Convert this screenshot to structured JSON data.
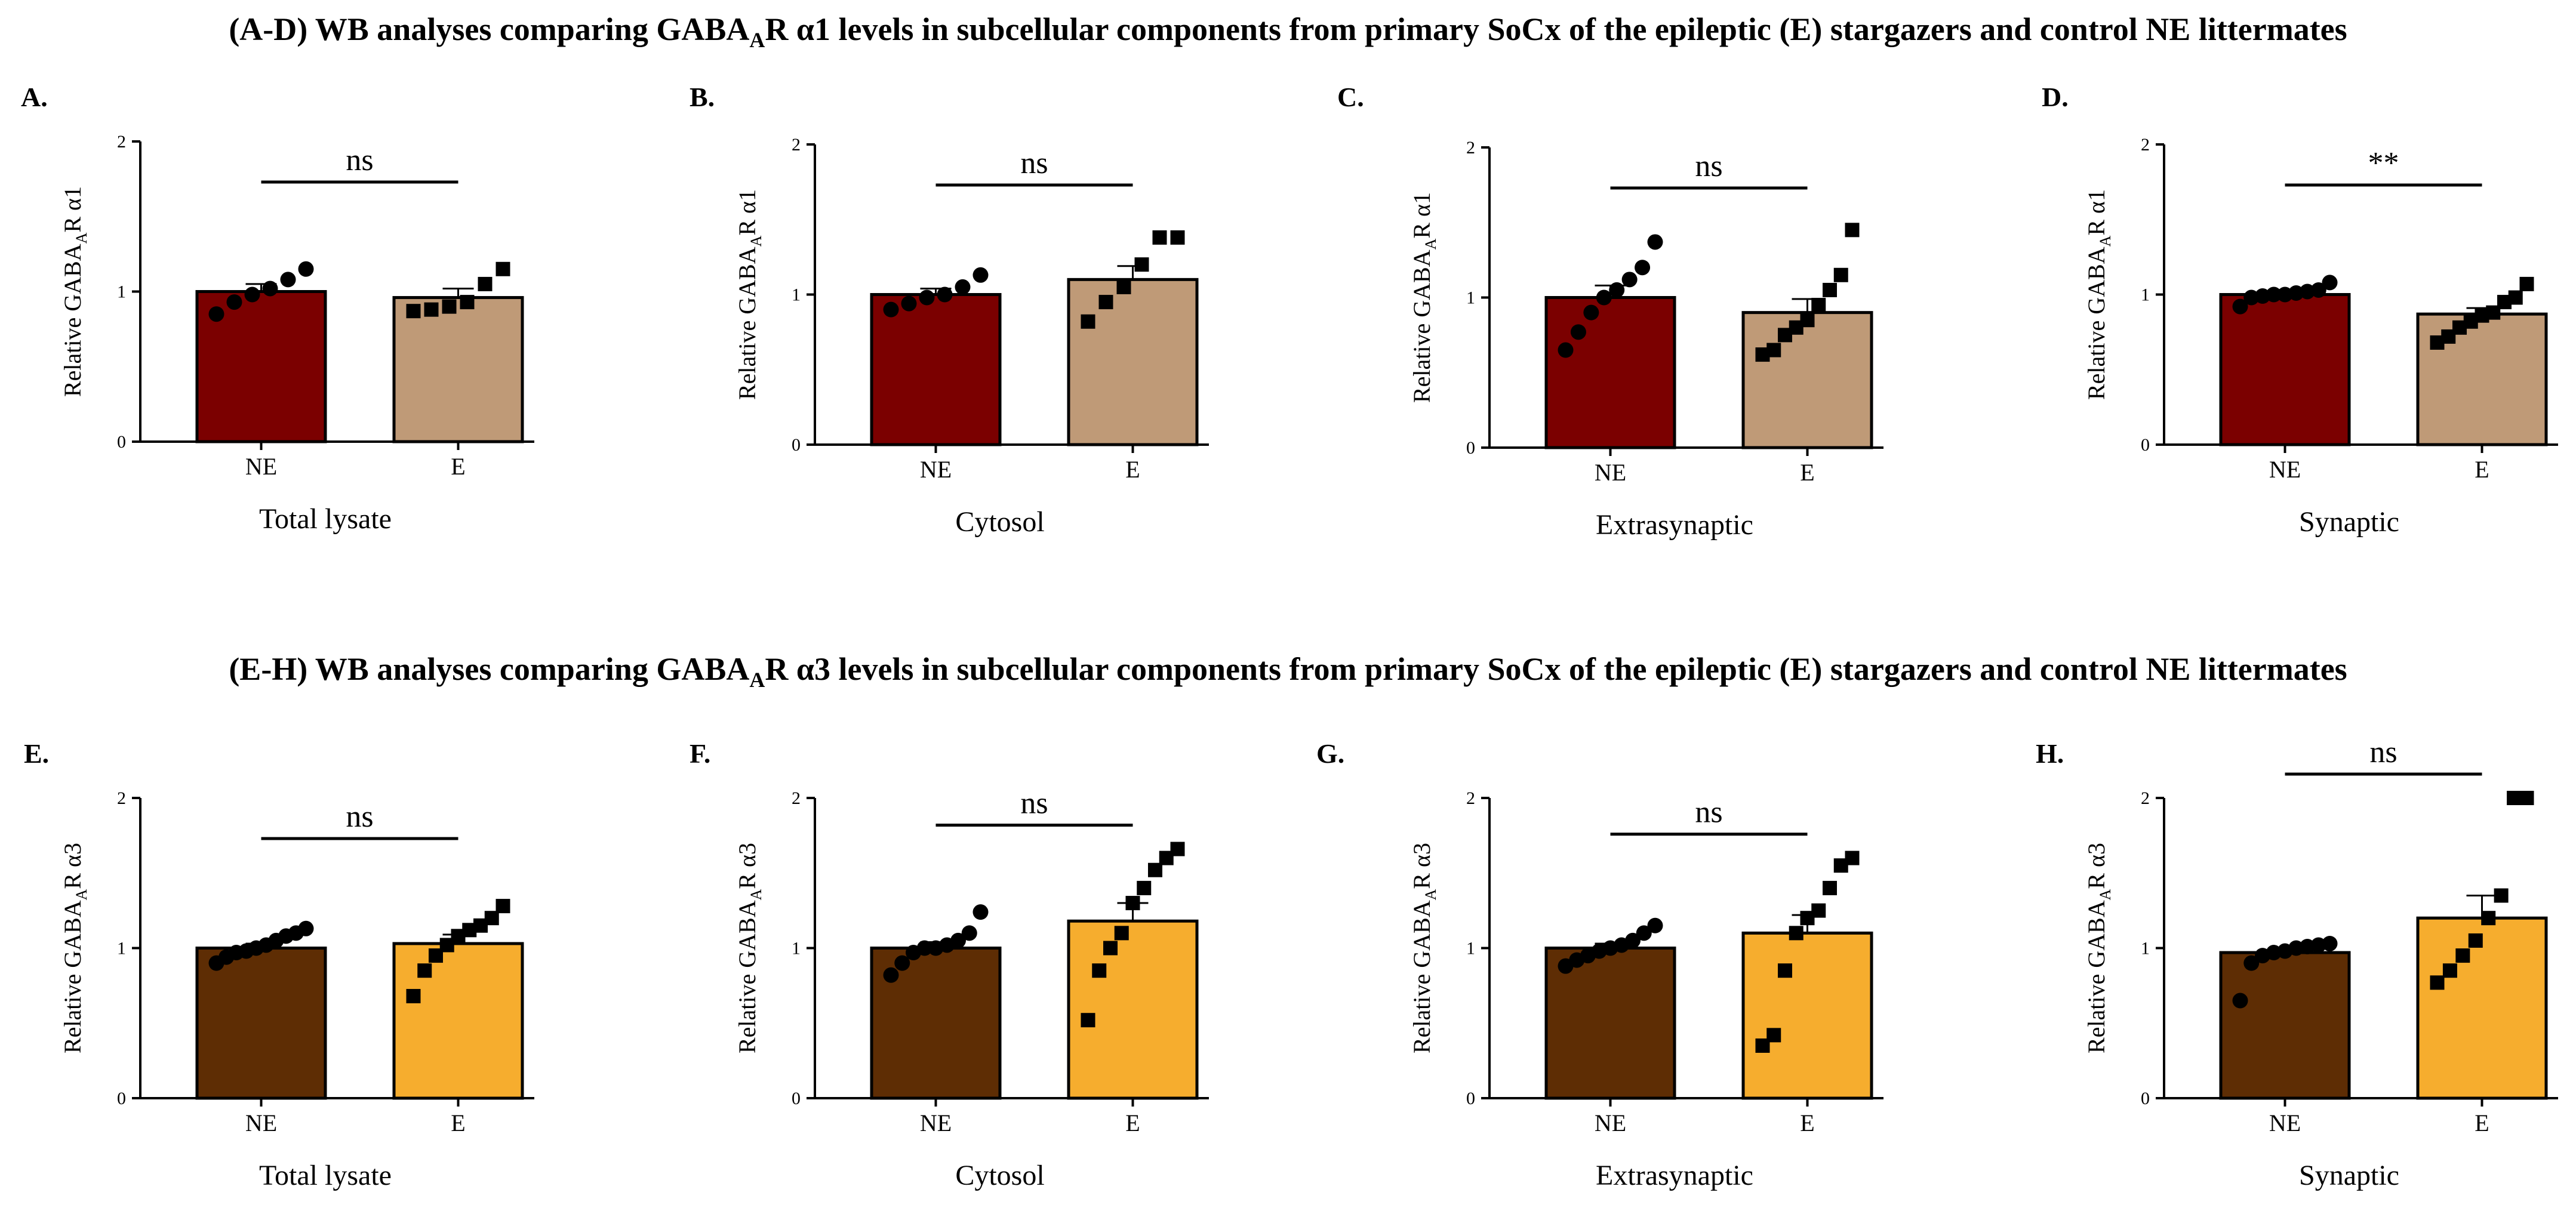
{
  "row_titles": [
    {
      "prefix": "(A-D) WB analyses comparing GABA",
      "sub": "A",
      "suffix": "R α1  levels in subcellular components from primary SoCx of the epileptic (E) stargazers and control NE littermates"
    },
    {
      "prefix": "(E-H) WB analyses comparing GABA",
      "sub": "A",
      "suffix": "R α3  levels in subcellular components from primary SoCx of the epileptic (E) stargazers and control NE littermates"
    }
  ],
  "colors": {
    "alpha1_ne": "#7b0000",
    "alpha1_e": "#bf9a77",
    "alpha3_ne": "#5e2d04",
    "alpha3_e": "#f6ad2e"
  },
  "chart_data": [
    {
      "panel": "A.",
      "type": "bar",
      "ylabel_prefix": "Relative GABA",
      "ylabel_sub": "A",
      "ylabel_suffix": "R α1",
      "ylim": [
        0,
        2
      ],
      "yticks": [
        "0",
        "1",
        "2"
      ],
      "xlabel": "Total lysate",
      "categories": [
        "NE",
        "E"
      ],
      "means": [
        1.0,
        0.96
      ],
      "sem": [
        0.05,
        0.06
      ],
      "significance": "ns",
      "points": [
        [
          0.85,
          0.93,
          0.98,
          1.02,
          1.08,
          1.15
        ],
        [
          0.87,
          0.88,
          0.9,
          0.93,
          1.05,
          1.15
        ]
      ],
      "markers": [
        "circle",
        "square"
      ],
      "fills": [
        "alpha1_ne",
        "alpha1_e"
      ]
    },
    {
      "panel": "B.",
      "type": "bar",
      "ylabel_prefix": "Relative GABA",
      "ylabel_sub": "A",
      "ylabel_suffix": "R α1",
      "ylim": [
        0,
        2
      ],
      "yticks": [
        "0",
        "1",
        "2"
      ],
      "xlabel": "Cytosol",
      "categories": [
        "NE",
        "E"
      ],
      "means": [
        1.0,
        1.1
      ],
      "sem": [
        0.04,
        0.09
      ],
      "significance": "ns",
      "points": [
        [
          0.9,
          0.94,
          0.98,
          1.0,
          1.05,
          1.13
        ],
        [
          0.82,
          0.95,
          1.05,
          1.2,
          1.38,
          1.38
        ]
      ],
      "markers": [
        "circle",
        "square"
      ],
      "fills": [
        "alpha1_ne",
        "alpha1_e"
      ]
    },
    {
      "panel": "C.",
      "type": "bar",
      "ylabel_prefix": "Relative GABA",
      "ylabel_sub": "A",
      "ylabel_suffix": "R α1",
      "ylim": [
        0,
        2
      ],
      "yticks": [
        "0",
        "1",
        "2"
      ],
      "xlabel": "Extrasynaptic",
      "categories": [
        "NE",
        "E"
      ],
      "means": [
        1.0,
        0.9
      ],
      "sem": [
        0.08,
        0.09
      ],
      "significance": "ns",
      "points": [
        [
          0.65,
          0.77,
          0.9,
          1.0,
          1.05,
          1.12,
          1.2,
          1.37
        ],
        [
          0.62,
          0.65,
          0.75,
          0.8,
          0.85,
          0.95,
          1.05,
          1.15,
          1.45
        ]
      ],
      "markers": [
        "circle",
        "square"
      ],
      "fills": [
        "alpha1_ne",
        "alpha1_e"
      ]
    },
    {
      "panel": "D.",
      "type": "bar",
      "ylabel_prefix": "Relative GABA",
      "ylabel_sub": "A",
      "ylabel_suffix": "R α1",
      "ylim": [
        0,
        2
      ],
      "yticks": [
        "0",
        "1",
        "2"
      ],
      "xlabel": "Synaptic",
      "categories": [
        "NE",
        "E"
      ],
      "means": [
        1.0,
        0.87
      ],
      "sem": [
        0.01,
        0.04
      ],
      "significance": "**",
      "points": [
        [
          0.92,
          0.98,
          0.99,
          1.0,
          1.0,
          1.01,
          1.02,
          1.03,
          1.08
        ],
        [
          0.68,
          0.72,
          0.78,
          0.82,
          0.86,
          0.88,
          0.95,
          0.98,
          1.07
        ]
      ],
      "markers": [
        "circle",
        "square"
      ],
      "fills": [
        "alpha1_ne",
        "alpha1_e"
      ]
    },
    {
      "panel": "E.",
      "type": "bar",
      "ylabel_prefix": "Relative GABA",
      "ylabel_sub": "A",
      "ylabel_suffix": "R α3",
      "ylim": [
        0,
        2
      ],
      "yticks": [
        "0",
        "1",
        "2"
      ],
      "xlabel": "Total lysate",
      "categories": [
        "NE",
        "E"
      ],
      "means": [
        1.0,
        1.03
      ],
      "sem": [
        0.03,
        0.06
      ],
      "significance": "ns",
      "points": [
        [
          0.9,
          0.94,
          0.97,
          0.98,
          1.0,
          1.02,
          1.05,
          1.08,
          1.1,
          1.13
        ],
        [
          0.68,
          0.85,
          0.95,
          1.02,
          1.08,
          1.12,
          1.15,
          1.2,
          1.28
        ]
      ],
      "markers": [
        "circle",
        "square"
      ],
      "fills": [
        "alpha3_ne",
        "alpha3_e"
      ]
    },
    {
      "panel": "F.",
      "type": "bar",
      "ylabel_prefix": "Relative GABA",
      "ylabel_sub": "A",
      "ylabel_suffix": "R α3",
      "ylim": [
        0,
        2
      ],
      "yticks": [
        "0",
        "1",
        "2"
      ],
      "xlabel": "Cytosol",
      "categories": [
        "NE",
        "E"
      ],
      "means": [
        1.0,
        1.18
      ],
      "sem": [
        0.04,
        0.12
      ],
      "significance": "ns",
      "points": [
        [
          0.82,
          0.9,
          0.97,
          1.0,
          1.0,
          1.02,
          1.05,
          1.1,
          1.24
        ],
        [
          0.52,
          0.85,
          1.0,
          1.1,
          1.3,
          1.4,
          1.52,
          1.6,
          1.66
        ]
      ],
      "markers": [
        "circle",
        "square"
      ],
      "fills": [
        "alpha3_ne",
        "alpha3_e"
      ]
    },
    {
      "panel": "G.",
      "type": "bar",
      "ylabel_prefix": "Relative GABA",
      "ylabel_sub": "A",
      "ylabel_suffix": "R α3",
      "ylim": [
        0,
        2
      ],
      "yticks": [
        "0",
        "1",
        "2"
      ],
      "xlabel": "Extrasynaptic",
      "categories": [
        "NE",
        "E"
      ],
      "means": [
        1.0,
        1.1
      ],
      "sem": [
        0.03,
        0.12
      ],
      "significance": "ns",
      "points": [
        [
          0.88,
          0.92,
          0.95,
          0.98,
          1.0,
          1.02,
          1.05,
          1.1,
          1.15
        ],
        [
          0.35,
          0.42,
          0.85,
          1.1,
          1.2,
          1.25,
          1.4,
          1.55,
          1.6
        ]
      ],
      "markers": [
        "circle",
        "square"
      ],
      "fills": [
        "alpha3_ne",
        "alpha3_e"
      ]
    },
    {
      "panel": "H.",
      "type": "bar",
      "ylabel_prefix": "Relative GABA",
      "ylabel_sub": "A",
      "ylabel_suffix": "R α3",
      "ylim": [
        0,
        2
      ],
      "yticks": [
        "0",
        "1",
        "2"
      ],
      "xlabel": "Synaptic",
      "categories": [
        "NE",
        "E"
      ],
      "means": [
        0.97,
        1.2
      ],
      "sem": [
        0.03,
        0.15
      ],
      "significance": "ns",
      "points": [
        [
          0.65,
          0.9,
          0.95,
          0.97,
          0.98,
          1.0,
          1.01,
          1.02,
          1.03
        ],
        [
          0.77,
          0.85,
          0.95,
          1.05,
          1.2,
          1.35,
          2.0,
          2.0
        ]
      ],
      "markers": [
        "circle",
        "square"
      ],
      "fills": [
        "alpha3_ne",
        "alpha3_e"
      ]
    }
  ]
}
